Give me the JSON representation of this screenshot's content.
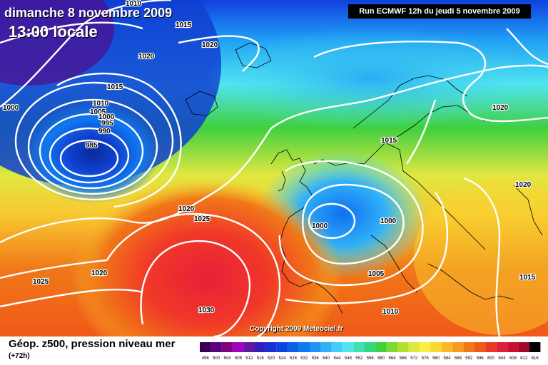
{
  "header": {
    "date": "dimanche 8 novembre 2009",
    "local_time": "13:00 locale",
    "run": "Run ECMWF 12h du jeudi 5 novembre 2009"
  },
  "footer": {
    "parameter": "Géop. z500, pression niveau mer",
    "lead_time": "(+72h)",
    "copyright": "Copyright 2009 Meteociel.fr"
  },
  "map": {
    "isobar_color": "#ffffff",
    "coastline_color": "#000000",
    "pressure_labels": [
      "1010",
      "1015",
      "1020",
      "1020",
      "1015",
      "1010",
      "1005",
      "1000",
      "995",
      "990",
      "985",
      "1000",
      "1015",
      "1020",
      "1000",
      "1000",
      "1020",
      "1025",
      "1020",
      "1025",
      "1030",
      "1005",
      "1010",
      "1015",
      "1020"
    ]
  },
  "legend": {
    "labels": [
      "496",
      "500",
      "504",
      "508",
      "512",
      "516",
      "520",
      "524",
      "528",
      "532",
      "536",
      "540",
      "544",
      "548",
      "552",
      "556",
      "560",
      "564",
      "568",
      "572",
      "576",
      "580",
      "584",
      "588",
      "592",
      "596",
      "600",
      "604",
      "608",
      "612",
      "616"
    ],
    "colors": [
      "#3c0050",
      "#5a0080",
      "#800080",
      "#a000c0",
      "#6018a0",
      "#3020b8",
      "#1830d0",
      "#0a44e0",
      "#0a5ee8",
      "#1078f0",
      "#2092f4",
      "#30b0f8",
      "#40cef8",
      "#50e4f0",
      "#40e0b0",
      "#30d880",
      "#40d040",
      "#80d830",
      "#b0e030",
      "#e0e840",
      "#f8f040",
      "#f8d830",
      "#f8b828",
      "#f89c20",
      "#f07818",
      "#f05818",
      "#e83828",
      "#e02038",
      "#c81030",
      "#a00828",
      "#000000"
    ]
  }
}
